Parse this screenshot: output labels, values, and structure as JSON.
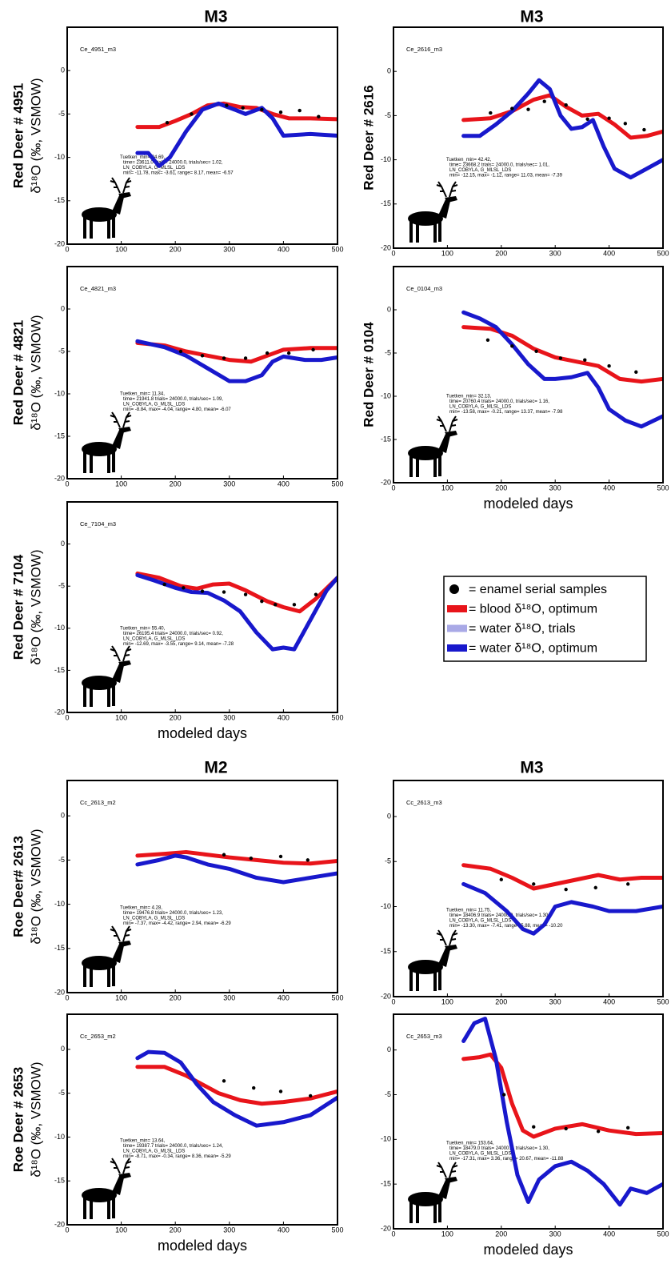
{
  "column_headers": [
    "M3",
    "M3",
    "M2",
    "M3"
  ],
  "legend": [
    {
      "label": "= enamel serial samples",
      "color": "#000000",
      "marker": "dot"
    },
    {
      "label": "= blood δ¹⁸O, optimum",
      "color": "#e8141a",
      "marker": "line"
    },
    {
      "label": "= water δ¹⁸O, trials",
      "color": "#a9a9e6",
      "marker": "line"
    },
    {
      "label": "= water δ¹⁸O, optimum",
      "color": "#1818cc",
      "marker": "line"
    }
  ],
  "chart_data": [
    {
      "type": "line",
      "panel_label": "Ce_4951_m3",
      "ylabel": [
        "Red Deer # 4951",
        "δ¹⁸O (‰, VSMOW)"
      ],
      "annotation": [
        "Tuetken_min= 24.69,",
        "time= 23611.0 trials= 24000.0, trials/sec= 1.02,",
        "LN_COBYLA, G_MLSL_LDS",
        "min= -11.78, max= -3.61, range= 8.17, mean= -6.57"
      ],
      "xlim": [
        0,
        500
      ],
      "ylim": [
        -20,
        5
      ],
      "xticks": [
        0,
        100,
        200,
        300,
        400,
        500
      ],
      "yticks": [
        -20,
        -15,
        -10,
        -5,
        0
      ],
      "series": [
        {
          "style": "line",
          "color": "#e8141a",
          "x": [
            130,
            170,
            200,
            230,
            260,
            290,
            320,
            350,
            380,
            410,
            450,
            500
          ],
          "values": [
            -6.5,
            -6.5,
            -5.8,
            -5,
            -4,
            -3.8,
            -4.2,
            -4.3,
            -5,
            -5.5,
            -5.5,
            -5.6
          ]
        },
        {
          "style": "line",
          "color": "#1818cc",
          "x": [
            130,
            150,
            170,
            190,
            220,
            250,
            280,
            310,
            330,
            360,
            380,
            400,
            450,
            500
          ],
          "values": [
            -9.5,
            -9.5,
            -11,
            -10,
            -7,
            -4.5,
            -3.8,
            -4.5,
            -5,
            -4.3,
            -5.5,
            -7.5,
            -7.3,
            -7.5
          ]
        },
        {
          "style": "dots",
          "color": "#000000",
          "x": [
            185,
            230,
            295,
            325,
            360,
            395,
            430,
            465
          ],
          "values": [
            -6,
            -5,
            -4,
            -4.3,
            -4.5,
            -4.8,
            -4.6,
            -5.3
          ]
        }
      ]
    },
    {
      "type": "line",
      "panel_label": "Ce_2616_m3",
      "ylabel": [
        "Red Deer # 2616"
      ],
      "annotation": [
        "Tuetken_min= 42.42,",
        "time= 23668.2 trials= 24000.0, trials/sec= 1.01,",
        "LN_COBYLA, G_MLSL_LDS",
        "min= -12.15, max= -1.12, range= 11.03, mean= -7.39"
      ],
      "xlim": [
        0,
        500
      ],
      "ylim": [
        -20,
        5
      ],
      "xticks": [
        0,
        100,
        200,
        300,
        400,
        500
      ],
      "yticks": [
        -20,
        -15,
        -10,
        -5,
        0
      ],
      "series": [
        {
          "style": "line",
          "color": "#e8141a",
          "x": [
            130,
            180,
            220,
            260,
            290,
            320,
            350,
            380,
            410,
            440,
            470,
            500
          ],
          "values": [
            -5.5,
            -5.3,
            -4.5,
            -3.2,
            -2.7,
            -4,
            -5,
            -4.8,
            -6,
            -7.5,
            -7.3,
            -6.8
          ]
        },
        {
          "style": "line",
          "color": "#1818cc",
          "x": [
            130,
            160,
            190,
            220,
            250,
            270,
            290,
            310,
            330,
            350,
            370,
            390,
            410,
            440,
            470,
            500
          ],
          "values": [
            -7.3,
            -7.3,
            -6,
            -4.5,
            -2.5,
            -1,
            -2,
            -5,
            -6.5,
            -6.3,
            -5.5,
            -8.5,
            -11,
            -12,
            -11,
            -10
          ]
        },
        {
          "style": "dots",
          "color": "#000000",
          "x": [
            180,
            220,
            250,
            280,
            320,
            360,
            400,
            430,
            465
          ],
          "values": [
            -4.7,
            -4.2,
            -4.3,
            -3.4,
            -3.8,
            -5.4,
            -5.3,
            -5.9,
            -6.6
          ]
        }
      ]
    },
    {
      "type": "line",
      "panel_label": "Ce_4821_m3",
      "ylabel": [
        "Red Deer # 4821",
        "δ¹⁸O (‰, VSMOW)"
      ],
      "annotation": [
        "Tuetken_min= 11.34,",
        "time= 21941.8 trials= 24000.0, trials/sec= 1.09,",
        "LN_COBYLA, G_MLSL_LDS",
        "min= -8.84, max= -4.04, range= 4.80, mean= -6.07"
      ],
      "xlim": [
        0,
        500
      ],
      "ylim": [
        -20,
        5
      ],
      "xticks": [
        0,
        100,
        200,
        300,
        400,
        500
      ],
      "yticks": [
        -20,
        -15,
        -10,
        -5,
        0
      ],
      "series": [
        {
          "style": "line",
          "color": "#e8141a",
          "x": [
            130,
            180,
            220,
            260,
            300,
            340,
            370,
            400,
            450,
            500
          ],
          "values": [
            -4,
            -4.3,
            -5,
            -5.5,
            -6,
            -6.2,
            -5.5,
            -4.8,
            -4.6,
            -4.6
          ]
        },
        {
          "style": "line",
          "color": "#1818cc",
          "x": [
            130,
            180,
            220,
            260,
            300,
            330,
            360,
            380,
            400,
            440,
            470,
            500
          ],
          "values": [
            -3.8,
            -4.5,
            -5.5,
            -7,
            -8.5,
            -8.5,
            -7.8,
            -6.2,
            -5.6,
            -6,
            -6,
            -5.7
          ]
        },
        {
          "style": "dots",
          "color": "#000000",
          "x": [
            210,
            250,
            290,
            330,
            370,
            410,
            455
          ],
          "values": [
            -5,
            -5.5,
            -5.8,
            -5.8,
            -5.2,
            -5.2,
            -4.8
          ]
        }
      ]
    },
    {
      "type": "line",
      "panel_label": "Ce_0104_m3",
      "ylabel": [
        "Red Deer # 0104"
      ],
      "xlabel": "modeled days",
      "annotation": [
        "Tuetken_min= 32.13,",
        "time= 20760.4 trials= 24000.0, trials/sec= 1.16,",
        "LN_COBYLA, G_MLSL_LDS",
        "min= -13.58, max= -0.21, range= 13.37, mean= -7.98"
      ],
      "xlim": [
        0,
        500
      ],
      "ylim": [
        -20,
        5
      ],
      "xticks": [
        0,
        100,
        200,
        300,
        400,
        500
      ],
      "yticks": [
        -20,
        -15,
        -10,
        -5,
        0
      ],
      "series": [
        {
          "style": "line",
          "color": "#e8141a",
          "x": [
            130,
            180,
            220,
            260,
            300,
            340,
            380,
            420,
            460,
            500
          ],
          "values": [
            -2,
            -2.2,
            -3,
            -4.5,
            -5.5,
            -6,
            -6.5,
            -8,
            -8.3,
            -8
          ]
        },
        {
          "style": "line",
          "color": "#1818cc",
          "x": [
            130,
            160,
            190,
            220,
            250,
            280,
            300,
            330,
            360,
            380,
            400,
            430,
            460,
            500
          ],
          "values": [
            -0.3,
            -1,
            -2,
            -4,
            -6.3,
            -8,
            -8,
            -7.8,
            -7.3,
            -9,
            -11.5,
            -12.8,
            -13.5,
            -12.3
          ]
        },
        {
          "style": "dots",
          "color": "#000000",
          "x": [
            175,
            220,
            265,
            310,
            355,
            400,
            450
          ],
          "values": [
            -3.5,
            -4.2,
            -4.8,
            -5.6,
            -5.8,
            -6.5,
            -7.2
          ]
        }
      ]
    },
    {
      "type": "line",
      "panel_label": "Ce_7104_m3",
      "ylabel": [
        "Red Deer # 7104",
        "δ¹⁸O (‰, VSMOW)"
      ],
      "xlabel": "modeled days",
      "annotation": [
        "Tuetken_min= 55.40,",
        "time= 26195.4 trials= 24000.0, trials/sec= 0.92,",
        "LN_COBYLA, G_MLSL_LDS",
        "min= -12.69, max= -3.55, range= 9.14, mean= -7.28"
      ],
      "xlim": [
        0,
        500
      ],
      "ylim": [
        -20,
        5
      ],
      "xticks": [
        0,
        100,
        200,
        300,
        400,
        500
      ],
      "yticks": [
        -20,
        -15,
        -10,
        -5,
        0
      ],
      "series": [
        {
          "style": "line",
          "color": "#e8141a",
          "x": [
            130,
            170,
            210,
            240,
            270,
            300,
            330,
            370,
            400,
            430,
            460,
            500
          ],
          "values": [
            -3.5,
            -4,
            -5,
            -5.3,
            -4.8,
            -4.7,
            -5.5,
            -6.8,
            -7.5,
            -8,
            -6.5,
            -4
          ]
        },
        {
          "style": "line",
          "color": "#1818cc",
          "x": [
            130,
            160,
            200,
            230,
            260,
            290,
            320,
            350,
            380,
            400,
            420,
            450,
            480,
            500
          ],
          "values": [
            -3.7,
            -4.3,
            -5.2,
            -5.7,
            -5.8,
            -6.7,
            -8,
            -10.5,
            -12.5,
            -12.3,
            -12.5,
            -9,
            -5.5,
            -4
          ]
        },
        {
          "style": "dots",
          "color": "#000000",
          "x": [
            180,
            215,
            250,
            290,
            330,
            360,
            385,
            420,
            460
          ],
          "values": [
            -4.8,
            -5.2,
            -5.6,
            -5.7,
            -6,
            -6.8,
            -7.2,
            -7.2,
            -6
          ]
        }
      ]
    },
    {
      "type": "line",
      "panel_label": "Cc_2613_m2",
      "ylabel": [
        "Roe Deer# 2613",
        "δ¹⁸O (‰, VSMOW)"
      ],
      "annotation": [
        "Tuetken_min= 4.28,",
        "time= 19476.8 trials= 24000.0, trials/sec= 1.23,",
        "LN_COBYLA, G_MLSL_LDS",
        "min= -7.37, max= -4.42, range= 2.94, mean= -6.29"
      ],
      "xlim": [
        0,
        500
      ],
      "ylim": [
        -20,
        4
      ],
      "xticks": [
        0,
        100,
        200,
        300,
        400,
        500
      ],
      "yticks": [
        -20,
        -15,
        -10,
        -5,
        0
      ],
      "series": [
        {
          "style": "line",
          "color": "#e8141a",
          "x": [
            130,
            180,
            220,
            260,
            300,
            350,
            400,
            450,
            500
          ],
          "values": [
            -4.5,
            -4.3,
            -4.1,
            -4.4,
            -4.7,
            -5,
            -5.3,
            -5.4,
            -5.1
          ]
        },
        {
          "style": "line",
          "color": "#1818cc",
          "x": [
            130,
            170,
            200,
            220,
            260,
            300,
            350,
            400,
            450,
            500
          ],
          "values": [
            -5.5,
            -5,
            -4.5,
            -4.7,
            -5.5,
            -6,
            -7,
            -7.5,
            -7,
            -6.5
          ]
        },
        {
          "style": "dots",
          "color": "#000000",
          "x": [
            290,
            340,
            395,
            445
          ],
          "values": [
            -4.4,
            -4.8,
            -4.6,
            -5
          ]
        }
      ]
    },
    {
      "type": "line",
      "panel_label": "Cc_2613_m3",
      "annotation": [
        "Tuetken_min= 11.75,",
        "time= 18406.9 trials= 24000.0, trials/sec= 1.30,",
        "LN_COBYLA, G_MLSL_LDS",
        "min= -13.30, max= -7.41, range= 5.88, mean= -10.20"
      ],
      "xlim": [
        0,
        500
      ],
      "ylim": [
        -20,
        4
      ],
      "xticks": [
        0,
        100,
        200,
        300,
        400,
        500
      ],
      "yticks": [
        -20,
        -15,
        -10,
        -5,
        0
      ],
      "series": [
        {
          "style": "line",
          "color": "#e8141a",
          "x": [
            130,
            180,
            220,
            260,
            300,
            340,
            380,
            420,
            460,
            500
          ],
          "values": [
            -5.4,
            -5.8,
            -6.8,
            -8,
            -7.5,
            -7,
            -6.5,
            -7,
            -6.8,
            -6.8
          ]
        },
        {
          "style": "line",
          "color": "#1818cc",
          "x": [
            130,
            170,
            210,
            240,
            260,
            280,
            300,
            330,
            370,
            400,
            450,
            500
          ],
          "values": [
            -7.5,
            -8.5,
            -10.5,
            -12.5,
            -13,
            -12,
            -10,
            -9.5,
            -10,
            -10.5,
            -10.5,
            -10
          ]
        },
        {
          "style": "dots",
          "color": "#000000",
          "x": [
            200,
            260,
            320,
            375,
            435
          ],
          "values": [
            -7,
            -7.5,
            -8.1,
            -7.9,
            -7.5
          ]
        }
      ]
    },
    {
      "type": "line",
      "panel_label": "Cc_2653_m2",
      "ylabel": [
        "Roe Deer # 2653",
        "δ¹⁸O (‰, VSMOW)"
      ],
      "xlabel": "modeled days",
      "annotation": [
        "Tuetken_min= 13.64,",
        "time= 19387.7 trials= 24000.0, trials/sec= 1.24,",
        "LN_COBYLA, G_MLSL_LDS",
        "min= -8.71, max= -0.34, range= 8.36, mean= -5.29"
      ],
      "xlim": [
        0,
        500
      ],
      "ylim": [
        -20,
        4
      ],
      "xticks": [
        0,
        100,
        200,
        300,
        400,
        500
      ],
      "yticks": [
        -20,
        -15,
        -10,
        -5,
        0
      ],
      "series": [
        {
          "style": "line",
          "color": "#e8141a",
          "x": [
            130,
            180,
            220,
            250,
            280,
            320,
            360,
            400,
            450,
            500
          ],
          "values": [
            -2,
            -2,
            -3,
            -4,
            -5,
            -5.8,
            -6.2,
            -6,
            -5.6,
            -4.8
          ]
        },
        {
          "style": "line",
          "color": "#1818cc",
          "x": [
            130,
            150,
            180,
            210,
            240,
            270,
            310,
            350,
            400,
            450,
            500
          ],
          "values": [
            -1,
            -0.3,
            -0.4,
            -1.5,
            -4,
            -6,
            -7.5,
            -8.7,
            -8.3,
            -7.5,
            -5.5
          ]
        },
        {
          "style": "dots",
          "color": "#000000",
          "x": [
            290,
            345,
            395,
            450
          ],
          "values": [
            -3.6,
            -4.4,
            -4.8,
            -5.3
          ]
        }
      ]
    },
    {
      "type": "line",
      "panel_label": "Cc_2653_m3",
      "xlabel": "modeled days",
      "annotation": [
        "Tuetken_min= 153.64,",
        "time= 18479.0 trials= 24000.0, trials/sec= 1.30,",
        "LN_COBYLA, G_MLSL_LDS",
        "min= -17.31, max= 3.36, range= 20.67, mean= -11.88"
      ],
      "xlim": [
        0,
        500
      ],
      "ylim": [
        -20,
        4
      ],
      "xticks": [
        0,
        100,
        200,
        300,
        400,
        500
      ],
      "yticks": [
        -20,
        -15,
        -10,
        -5,
        0
      ],
      "series": [
        {
          "style": "line",
          "color": "#e8141a",
          "x": [
            130,
            160,
            180,
            200,
            220,
            240,
            260,
            300,
            350,
            400,
            450,
            500
          ],
          "values": [
            -1,
            -0.8,
            -0.5,
            -2,
            -6,
            -9,
            -9.7,
            -8.8,
            -8.3,
            -9,
            -9.4,
            -9.3
          ]
        },
        {
          "style": "line",
          "color": "#1818cc",
          "x": [
            130,
            150,
            170,
            190,
            210,
            230,
            250,
            270,
            300,
            330,
            360,
            390,
            420,
            440,
            470,
            500
          ],
          "values": [
            1,
            3,
            3.5,
            -1,
            -8,
            -14,
            -17,
            -14.5,
            -13,
            -12.5,
            -13.5,
            -15,
            -17.3,
            -15.5,
            -16,
            -15
          ]
        },
        {
          "style": "dots",
          "color": "#000000",
          "x": [
            205,
            260,
            320,
            380,
            435
          ],
          "values": [
            -5,
            -8.6,
            -8.8,
            -9.1,
            -8.7
          ]
        }
      ]
    }
  ]
}
